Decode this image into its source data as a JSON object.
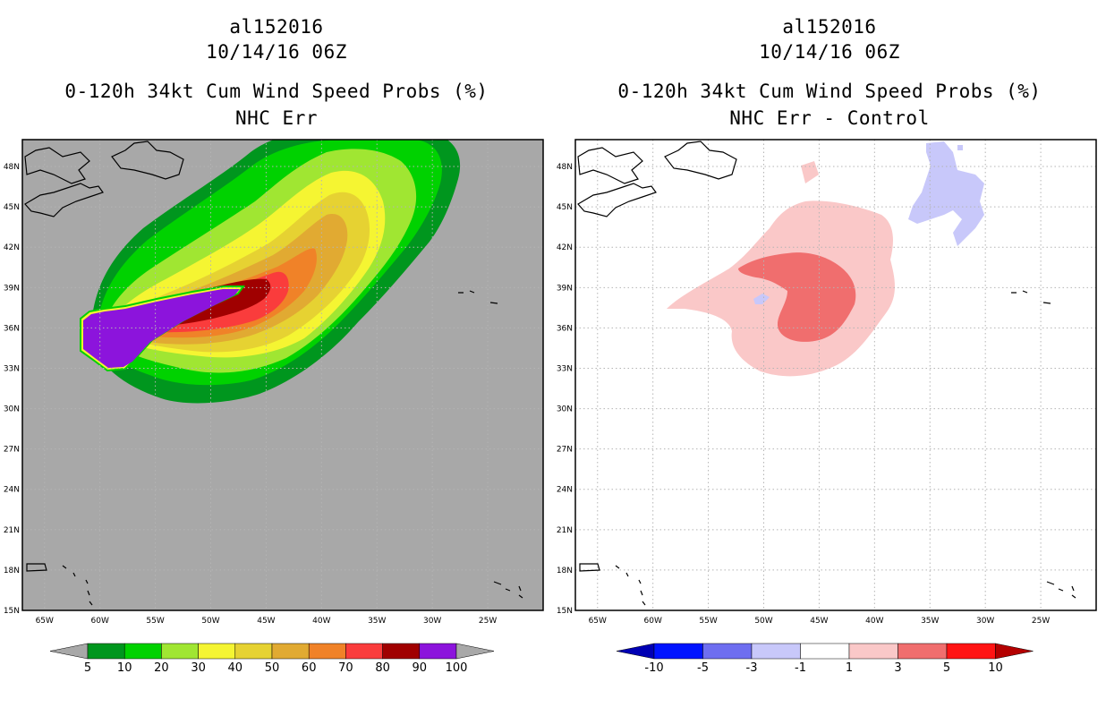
{
  "left": {
    "title": {
      "storm": "al152016",
      "datetime": "10/14/16 06Z",
      "product": "0-120h 34kt Cum Wind Speed Probs (%)",
      "subtitle": "NHC Err"
    },
    "colorbar": {
      "labels": [
        "5",
        "10",
        "20",
        "30",
        "40",
        "50",
        "60",
        "70",
        "80",
        "90",
        "100"
      ],
      "colors": [
        "#00961e",
        "#00d200",
        "#a0e632",
        "#f5f532",
        "#e6d232",
        "#e1aa32",
        "#f08228",
        "#fa3c3c",
        "#a00000",
        "#8c14dc"
      ]
    }
  },
  "right": {
    "title": {
      "storm": "al152016",
      "datetime": "10/14/16 06Z",
      "product": "0-120h 34kt Cum Wind Speed Probs (%)",
      "subtitle": "NHC Err - Control"
    },
    "colorbar": {
      "labels": [
        "-10",
        "-5",
        "-3",
        "-1",
        "1",
        "3",
        "5",
        "10"
      ],
      "colors": [
        "#0000b4",
        "#0014ff",
        "#6e6ef0",
        "#c8c8fa",
        "#ffffff",
        "#fac8c8",
        "#f06e6e",
        "#ff1414",
        "#b40000"
      ]
    }
  },
  "axes": {
    "lon_labels": [
      "65W",
      "60W",
      "55W",
      "50W",
      "45W",
      "40W",
      "35W",
      "30W",
      "25W"
    ],
    "lat_labels": [
      "48N",
      "45N",
      "42N",
      "39N",
      "36N",
      "33N",
      "30N",
      "27N",
      "24N",
      "21N",
      "18N",
      "15N"
    ],
    "lon_range": [
      -67,
      -20
    ],
    "lat_range": [
      15,
      50
    ]
  },
  "map_colors": {
    "land_background": "#a8a8a8",
    "grid": "#b4b4b4",
    "coast": "#000000"
  }
}
